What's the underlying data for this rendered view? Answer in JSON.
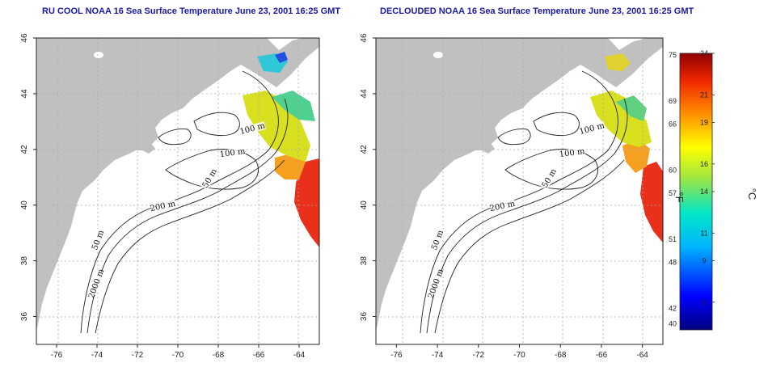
{
  "panels": [
    {
      "id": "left",
      "title": "RU COOL NOAA 16 Sea Surface Temperature June 23, 2001 16:25 GMT",
      "contour_labels": [
        "100 m",
        "100 m",
        "50 m",
        "200 m",
        "50 m",
        "2000 m"
      ]
    },
    {
      "id": "right",
      "title": "DECLOUDED NOAA 16 Sea Surface Temperature June 23, 2001 16:25 GMT",
      "contour_labels": [
        "100 m",
        "100 m",
        "50 m",
        "200 m",
        "50 m",
        "2000 m"
      ]
    }
  ],
  "axes": {
    "longitude_ticks": [
      "-76",
      "-74",
      "-72",
      "-70",
      "-68",
      "-66",
      "-64"
    ],
    "latitude_ticks": [
      "46",
      "44",
      "42",
      "40",
      "38",
      "36"
    ],
    "lon_range": [
      -77,
      -63
    ],
    "lat_range": [
      35,
      46
    ]
  },
  "colorbar": {
    "fahrenheit_ticks": [
      "75",
      "69",
      "66",
      "60",
      "57",
      "51",
      "48",
      "42",
      "40"
    ],
    "celsius_ticks": [
      "24",
      "21",
      "19",
      "16",
      "14",
      "11",
      "9",
      "6"
    ],
    "fahrenheit_unit": "°F",
    "celsius_unit": "°C",
    "range_c": [
      4,
      24
    ]
  },
  "colors": {
    "land": "#c0c0c0",
    "ocean": "#ffffff",
    "title": "#1a1aa8",
    "warm": "#e8301a",
    "cool": "#1030d0"
  }
}
